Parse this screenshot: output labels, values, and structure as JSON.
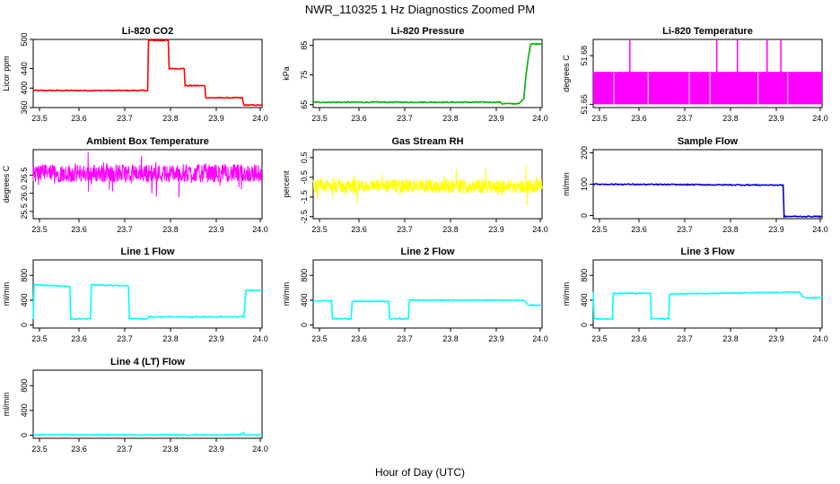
{
  "figure": {
    "title": "NWR_110325  1 Hz Diagnostics Zoomed PM",
    "xlabel": "Hour of Day (UTC)"
  },
  "chart_data": [
    {
      "type": "line",
      "title": "Li-820 CO2",
      "ylabel": "Licor ppm",
      "color": "#ff0000",
      "xlim": [
        23.5,
        24.0
      ],
      "ylim": [
        360,
        500
      ],
      "xticks": [
        "23.5",
        "23.6",
        "23.7",
        "23.8",
        "23.9",
        "24.0"
      ],
      "yticks": [
        "360",
        "400",
        "440",
        "500"
      ],
      "series": [
        {
          "x": [
            23.5,
            23.75,
            23.752,
            23.795,
            23.797,
            23.83,
            23.832,
            23.875,
            23.877,
            23.957,
            23.96,
            24.0
          ],
          "y": [
            395,
            395,
            498,
            498,
            440,
            440,
            405,
            405,
            380,
            380,
            365,
            365
          ]
        }
      ]
    },
    {
      "type": "line",
      "title": "Li-820 Pressure",
      "ylabel": "kPa",
      "color": "#00b000",
      "xlim": [
        23.5,
        24.0
      ],
      "ylim": [
        64,
        87
      ],
      "xticks": [
        "23.5",
        "23.6",
        "23.7",
        "23.8",
        "23.9",
        "24.0"
      ],
      "yticks": [
        "65",
        "75",
        "85"
      ],
      "series": [
        {
          "x": [
            23.5,
            23.91,
            23.912,
            23.95,
            23.96,
            23.965,
            23.97,
            23.975,
            24.0
          ],
          "y": [
            65.8,
            65.8,
            65.3,
            65.3,
            67.0,
            75.0,
            81.0,
            85.5,
            85.5
          ]
        }
      ]
    },
    {
      "type": "line",
      "title": "Li-820 Temperature",
      "ylabel": "degrees C",
      "color": "#ff00ff",
      "xlim": [
        23.5,
        24.0
      ],
      "ylim": [
        51.648,
        51.69
      ],
      "xticks": [
        "23.5",
        "23.6",
        "23.7",
        "23.8",
        "23.9",
        "24.0"
      ],
      "yticks": [
        "51.65",
        "51.68"
      ],
      "series": [
        {
          "x": [
            23.5,
            24.0
          ],
          "low": 51.65,
          "high": 51.67
        }
      ],
      "spikes": [
        {
          "x": 23.58,
          "y": 51.69
        },
        {
          "x": 23.77,
          "y": 51.69
        },
        {
          "x": 23.815,
          "y": 51.69
        },
        {
          "x": 23.88,
          "y": 51.69
        },
        {
          "x": 23.91,
          "y": 51.69
        }
      ]
    },
    {
      "type": "line",
      "title": "Ambient Box Temperature",
      "ylabel": "degrees C",
      "color": "#ff00ff",
      "xlim": [
        23.5,
        24.0
      ],
      "ylim": [
        25.3,
        27.2
      ],
      "xticks": [
        "23.5",
        "23.6",
        "23.7",
        "23.8",
        "23.9",
        "24.0"
      ],
      "yticks": [
        "25.5",
        "26.0",
        "26.5"
      ],
      "series": [
        {
          "x": [
            23.5,
            24.0
          ],
          "center": 26.55,
          "noise": 0.25
        }
      ]
    },
    {
      "type": "line",
      "title": "Gas Stream RH",
      "ylabel": "percent",
      "color": "#ffff00",
      "xlim": [
        23.5,
        24.0
      ],
      "ylim": [
        -2.6,
        0.9
      ],
      "xticks": [
        "23.5",
        "23.6",
        "23.7",
        "23.8",
        "23.9",
        "24.0"
      ],
      "yticks": [
        "-2.5",
        "-1.5",
        "-0.5",
        "0.5"
      ],
      "series": [
        {
          "x": [
            23.5,
            24.0
          ],
          "center": -0.95,
          "noise": 0.35
        }
      ]
    },
    {
      "type": "line",
      "title": "Sample Flow",
      "ylabel": "ml/min",
      "color": "#0000cc",
      "xlim": [
        23.5,
        24.0
      ],
      "ylim": [
        -10,
        210
      ],
      "xticks": [
        "23.5",
        "23.6",
        "23.7",
        "23.8",
        "23.9",
        "24.0"
      ],
      "yticks": [
        "0",
        "100",
        "200"
      ],
      "series": [
        {
          "x": [
            23.5,
            23.915,
            23.917,
            24.0
          ],
          "y": [
            100,
            97,
            -3,
            -3
          ]
        }
      ]
    },
    {
      "type": "line",
      "title": "Line 1 Flow",
      "ylabel": "ml/min",
      "color": "#00ffff",
      "xlim": [
        23.5,
        24.0
      ],
      "ylim": [
        -50,
        1050
      ],
      "xticks": [
        "23.5",
        "23.6",
        "23.7",
        "23.8",
        "23.9",
        "24.0"
      ],
      "yticks": [
        "0",
        "400",
        "800"
      ],
      "series": [
        {
          "x": [
            23.5,
            23.502,
            23.58,
            23.582,
            23.625,
            23.627,
            23.708,
            23.71,
            23.75,
            23.752,
            23.96,
            23.965,
            24.0
          ],
          "y": [
            100,
            650,
            620,
            100,
            100,
            650,
            630,
            100,
            100,
            130,
            130,
            560,
            560
          ]
        }
      ]
    },
    {
      "type": "line",
      "title": "Line 2 Flow",
      "ylabel": "ml/min",
      "color": "#00ffff",
      "xlim": [
        23.5,
        24.0
      ],
      "ylim": [
        -50,
        1050
      ],
      "xticks": [
        "23.5",
        "23.6",
        "23.7",
        "23.8",
        "23.9",
        "24.0"
      ],
      "yticks": [
        "0",
        "400",
        "800"
      ],
      "series": [
        {
          "x": [
            23.5,
            23.54,
            23.542,
            23.583,
            23.585,
            23.665,
            23.667,
            23.708,
            23.71,
            23.96,
            23.97,
            24.0
          ],
          "y": [
            390,
            390,
            100,
            100,
            380,
            380,
            100,
            100,
            400,
            400,
            320,
            320
          ]
        }
      ]
    },
    {
      "type": "line",
      "title": "Line 3 Flow",
      "ylabel": "ml/min",
      "color": "#00ffff",
      "xlim": [
        23.5,
        24.0
      ],
      "ylim": [
        -50,
        1050
      ],
      "xticks": [
        "23.5",
        "23.6",
        "23.7",
        "23.8",
        "23.9",
        "24.0"
      ],
      "yticks": [
        "0",
        "400",
        "800"
      ],
      "series": [
        {
          "x": [
            23.5,
            23.502,
            23.542,
            23.544,
            23.625,
            23.627,
            23.665,
            23.667,
            23.95,
            23.96,
            24.0
          ],
          "y": [
            540,
            100,
            100,
            510,
            510,
            100,
            100,
            500,
            530,
            440,
            440
          ]
        }
      ]
    },
    {
      "type": "line",
      "title": "Line 4 (LT) Flow",
      "ylabel": "ml/min",
      "color": "#00ffff",
      "xlim": [
        23.5,
        24.0
      ],
      "ylim": [
        -50,
        1050
      ],
      "xticks": [
        "23.5",
        "23.6",
        "23.7",
        "23.8",
        "23.9",
        "24.0"
      ],
      "yticks": [
        "0",
        "400",
        "800"
      ],
      "series": [
        {
          "x": [
            23.5,
            23.955,
            23.96,
            23.962,
            24.0
          ],
          "y": [
            5,
            5,
            45,
            5,
            5
          ]
        }
      ]
    }
  ]
}
